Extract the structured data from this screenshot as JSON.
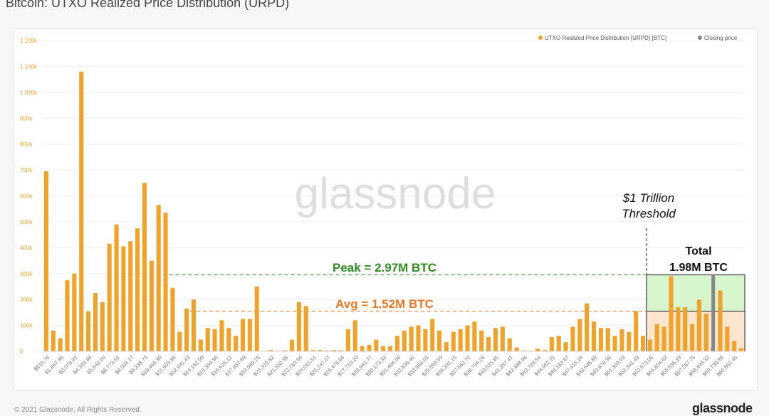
{
  "page": {
    "title": "Bitcoin: UTXO Realized Price Distribution (URPD)",
    "copyright": "© 2021 Glassnode. All Rights Reserved.",
    "brand": "glassnode"
  },
  "colors": {
    "bar": "#f0a32b",
    "closing": "#888888",
    "peak": "#2e8b1e",
    "avg": "#f0771f",
    "total_fill_upper": "#d6f5cc",
    "total_fill_lower": "#fde6cf",
    "grid": "#eeeeee",
    "watermark": "#dedede"
  },
  "chart_data": {
    "type": "bar",
    "title": "Bitcoin: UTXO Realized Price Distribution (URPD)",
    "watermark": "glassnode",
    "ylim": [
      0,
      1200000
    ],
    "y_ticks": [
      {
        "v": 0,
        "label": "0"
      },
      {
        "v": 100000,
        "label": "100k"
      },
      {
        "v": 200000,
        "label": "200k"
      },
      {
        "v": 300000,
        "label": "300k"
      },
      {
        "v": 400000,
        "label": "400k"
      },
      {
        "v": 500000,
        "label": "500k"
      },
      {
        "v": 600000,
        "label": "600k"
      },
      {
        "v": 700000,
        "label": "700k"
      },
      {
        "v": 800000,
        "label": "800k"
      },
      {
        "v": 900000,
        "label": "900k"
      },
      {
        "v": 1000000,
        "label": "1 000k"
      },
      {
        "v": 1100000,
        "label": "1 100k"
      },
      {
        "v": 1200000,
        "label": "1 200k"
      }
    ],
    "legend": [
      {
        "label": "UTXO Realized Price Distribution (URPD) [BTC]",
        "color": "#f0a32b"
      },
      {
        "label": "Closing price",
        "color": "#888888"
      }
    ],
    "x_tick_labels": [
      "$615.76",
      "$1,847.35",
      "$3,078.91",
      "$4,310.48",
      "$5,542.04",
      "$6,773.61",
      "$8,005.17",
      "$9,236.73",
      "$10,468.30",
      "$11,699.86",
      "$12,931.43",
      "$14,162.99",
      "$15,394.56",
      "$16,626.12",
      "$17,857.69",
      "$19,089.25",
      "$20,320.82",
      "$21,552.38",
      "$22,783.94",
      "$24,015.51",
      "$25,247.07",
      "$26,478.64",
      "$27,710.20",
      "$28,941.77",
      "$30,173.33",
      "$31,404.90",
      "$32,636.46",
      "$33,868.03",
      "$35,099.59",
      "$36,331.15",
      "$37,562.72",
      "$38,794.28",
      "$40,025.85",
      "$41,257.41",
      "$42,488.98",
      "$43,720.54",
      "$44,952.11",
      "$46,183.67",
      "$47,415.24",
      "$48,646.80",
      "$49,878.36",
      "$51,109.93",
      "$52,341.49",
      "$53,573.06",
      "$54,804.62",
      "$56,036.19",
      "$57,267.75",
      "$58,499.32",
      "$59,730.88",
      "$60,962.45"
    ],
    "values": [
      695000,
      80000,
      50000,
      275000,
      300000,
      1080000,
      155000,
      225000,
      190000,
      415000,
      490000,
      405000,
      425000,
      475000,
      650000,
      350000,
      565000,
      535000,
      245000,
      75000,
      165000,
      200000,
      45000,
      90000,
      85000,
      120000,
      90000,
      60000,
      125000,
      125000,
      250000,
      1000,
      5000,
      1000,
      4000,
      45000,
      190000,
      175000,
      5000,
      5000,
      3000,
      5000,
      4000,
      85000,
      120000,
      20000,
      25000,
      45000,
      20000,
      20000,
      60000,
      80000,
      95000,
      100000,
      85000,
      125000,
      80000,
      35000,
      75000,
      85000,
      100000,
      115000,
      80000,
      55000,
      90000,
      95000,
      50000,
      15000,
      3000,
      2000,
      10000,
      5000,
      55000,
      60000,
      35000,
      95000,
      125000,
      185000,
      115000,
      90000,
      90000,
      60000,
      85000,
      75000,
      155000,
      60000,
      45000,
      105000,
      95000,
      290000,
      170000,
      170000,
      105000,
      200000,
      145000,
      15000,
      235000,
      95000,
      40000,
      12000
    ],
    "closing_price_bar_index": 95,
    "annotations": {
      "threshold": "$1 Trillion\nThreshold",
      "total": "Total\n1.98M BTC",
      "peak": "Peak = 2.97M BTC",
      "avg": "Avg = 1.52M BTC",
      "peak_level": 295000,
      "avg_level": 155000,
      "threshold_start_index": 86
    }
  }
}
